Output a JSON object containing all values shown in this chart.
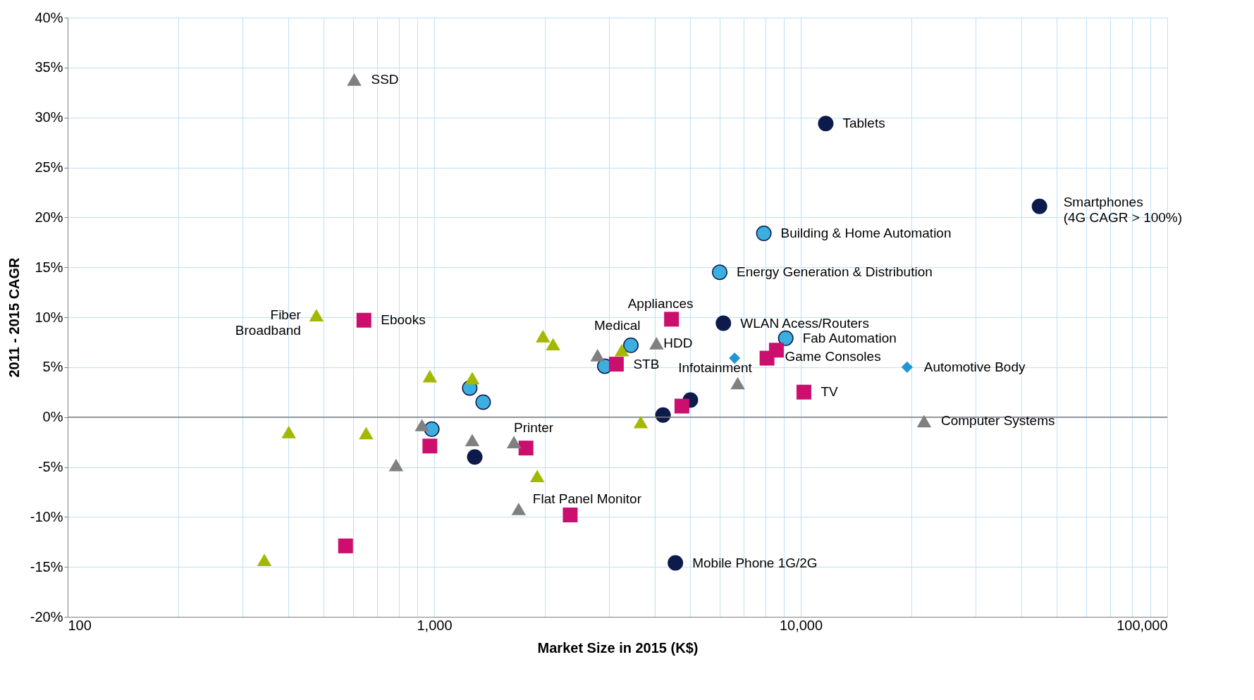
{
  "chart_data": {
    "type": "scatter",
    "xlabel": "Market Size in 2015 (K$)",
    "ylabel": "2011 - 2015 CAGR",
    "log": "x",
    "grid": true,
    "xlim": [
      100,
      100000
    ],
    "ylim": [
      -20,
      40
    ],
    "xticks": [
      100,
      {
        "value": 200,
        "label": null
      },
      {
        "value": 300,
        "label": null
      },
      {
        "value": 400,
        "label": null
      },
      {
        "value": 500,
        "label": null
      },
      {
        "value": 600,
        "label": null
      },
      {
        "value": 700,
        "label": null
      },
      {
        "value": 800,
        "label": null
      },
      {
        "value": 900,
        "label": null
      },
      {
        "value": 1000,
        "label": "1,000"
      },
      {
        "value": 2000,
        "label": null
      },
      {
        "value": 3000,
        "label": null
      },
      {
        "value": 4000,
        "label": null
      },
      {
        "value": 5000,
        "label": null
      },
      {
        "value": 6000,
        "label": null
      },
      {
        "value": 7000,
        "label": null
      },
      {
        "value": 8000,
        "label": null
      },
      {
        "value": 9000,
        "label": null
      },
      {
        "value": 10000,
        "label": "10,000"
      },
      {
        "value": 20000,
        "label": null
      },
      {
        "value": 30000,
        "label": null
      },
      {
        "value": 40000,
        "label": null
      },
      {
        "value": 50000,
        "label": null
      },
      {
        "value": 60000,
        "label": null
      },
      {
        "value": 70000,
        "label": null
      },
      {
        "value": 80000,
        "label": null
      },
      {
        "value": 90000,
        "label": null
      },
      {
        "value": 100000,
        "label": "100,000"
      }
    ],
    "yticks": [
      {
        "value": -20,
        "label": "-20%"
      },
      {
        "value": -15,
        "label": "-15%"
      },
      {
        "value": -10,
        "label": "-10%"
      },
      {
        "value": -5,
        "label": "-5%"
      },
      {
        "value": 0,
        "label": "0%"
      },
      {
        "value": 5,
        "label": "5%"
      },
      {
        "value": 10,
        "label": "10%"
      },
      {
        "value": 15,
        "label": "15%"
      },
      {
        "value": 20,
        "label": "20%"
      },
      {
        "value": 25,
        "label": "25%"
      },
      {
        "value": 30,
        "label": "30%"
      },
      {
        "value": 35,
        "label": "35%"
      },
      {
        "value": 40,
        "label": "40%"
      }
    ],
    "ref_lines": [
      {
        "axis": "y",
        "value": 0,
        "color": "#808080"
      }
    ],
    "series": [
      {
        "color": "#0d1b4c",
        "marker": "circle",
        "x": [
          11700,
          44800,
          6150,
          5000,
          4210,
          1290,
          4550
        ],
        "values": [
          29.4,
          21.1,
          9.4,
          1.7,
          0.2,
          -4.0,
          -14.6
        ]
      },
      {
        "color": "#3daee0",
        "marker": "circle",
        "x": [
          7930,
          6010,
          9100,
          3440,
          2920,
          1250,
          1360,
          985
        ],
        "values": [
          18.4,
          14.5,
          7.9,
          7.2,
          5.1,
          2.9,
          1.5,
          -1.2
        ]
      },
      {
        "color": "#cc0e6e",
        "marker": "square",
        "x": [
          643,
          4440,
          8090,
          8580,
          3140,
          10200,
          4740,
          973,
          1780,
          2350,
          573
        ],
        "values": [
          9.7,
          9.8,
          5.9,
          6.7,
          5.3,
          2.5,
          1.1,
          -2.9,
          -3.1,
          -9.8,
          -12.9
        ]
      },
      {
        "color": "#2196d3",
        "marker": "diamond",
        "x": [
          6600,
          19500
        ],
        "values": [
          5.9,
          5.0
        ]
      },
      {
        "color": "#808080",
        "marker": "triangle",
        "x": [
          605,
          4040,
          2790,
          6730,
          21700,
          926,
          1270,
          1650,
          787,
          1700
        ],
        "values": [
          33.8,
          7.4,
          6.2,
          3.4,
          -0.4,
          -0.8,
          -2.3,
          -2.5,
          -4.8,
          -9.2
        ]
      },
      {
        "color": "#a3b800",
        "marker": "triangle",
        "x": [
          477,
          1980,
          2110,
          3250,
          973,
          1270,
          3660,
          401,
          652,
          1910,
          344
        ],
        "values": [
          10.2,
          8.1,
          7.3,
          6.7,
          4.1,
          3.9,
          -0.5,
          -1.5,
          -1.6,
          -5.9,
          -14.3
        ]
      }
    ],
    "annotations": [
      {
        "text": "SSD",
        "x": 605,
        "y": 33.8
      },
      {
        "text": "Tablets",
        "x": 11700,
        "y": 29.4
      },
      {
        "text": "Smartphones\n(4G CAGR > 100%)",
        "x": 44800,
        "y": 21.1
      },
      {
        "text": "Building & Home Automation",
        "x": 7930,
        "y": 18.4
      },
      {
        "text": "Energy Generation & Distribution",
        "x": 6010,
        "y": 14.5
      },
      {
        "text": "WLAN  Acess/Routers",
        "x": 6150,
        "y": 9.4
      },
      {
        "text": "Fab Automation",
        "x": 9100,
        "y": 7.9
      },
      {
        "text": "Fiber\nBroadband",
        "x": 477,
        "y": 10.2
      },
      {
        "text": "Ebooks",
        "x": 643,
        "y": 9.7
      },
      {
        "text": "Appliances",
        "x": 4440,
        "y": 9.8
      },
      {
        "text": "Medical",
        "x": 3440,
        "y": 7.2
      },
      {
        "text": "HDD",
        "x": 4040,
        "y": 7.4
      },
      {
        "text": "STB",
        "x": 3140,
        "y": 5.3
      },
      {
        "text": "Infotainment",
        "x": 6600,
        "y": 5.9
      },
      {
        "text": "Game Consoles",
        "x": 8580,
        "y": 6.7
      },
      {
        "text": "Automotive Body",
        "x": 19500,
        "y": 5.0
      },
      {
        "text": "TV",
        "x": 10200,
        "y": 2.5
      },
      {
        "text": "Computer Systems",
        "x": 21700,
        "y": -0.4
      },
      {
        "text": "Printer",
        "x": 1650,
        "y": -2.5
      },
      {
        "text": "Flat Panel Monitor",
        "x": 1700,
        "y": -9.2
      },
      {
        "text": "Mobile Phone 1G/2G",
        "x": 4550,
        "y": -14.6
      }
    ]
  }
}
